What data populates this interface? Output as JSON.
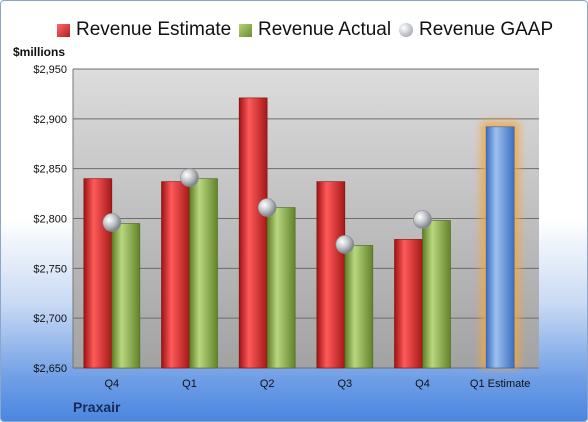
{
  "chart_data": {
    "type": "bar",
    "ylabel": "$millions",
    "footer": "Praxair",
    "categories": [
      "Q4",
      "Q1",
      "Q2",
      "Q3",
      "Q4",
      "Q1 Estimate"
    ],
    "ylim": [
      2650,
      2950
    ],
    "yticks": [
      2650,
      2700,
      2750,
      2800,
      2850,
      2900,
      2950
    ],
    "ytick_labels": [
      "$2,650",
      "$2,700",
      "$2,750",
      "$2,800",
      "$2,850",
      "$2,900",
      "$2,950"
    ],
    "legend_position": "top",
    "grid": true,
    "series": [
      {
        "name": "Revenue Estimate",
        "kind": "bar",
        "color": "#d42a2a",
        "values": [
          2840,
          2837,
          2921,
          2837,
          2779,
          null
        ]
      },
      {
        "name": "Revenue Actual",
        "kind": "bar",
        "color": "#8db04a",
        "values": [
          2795,
          2840,
          2811,
          2773,
          2798,
          null
        ]
      },
      {
        "name": "Revenue GAAP",
        "kind": "marker",
        "color": "#b8bcc2",
        "values": [
          2796,
          2841,
          2811,
          2774,
          2799,
          null
        ]
      }
    ],
    "projection": {
      "category": "Q1 Estimate",
      "value": 2892,
      "color": "#5b8fd6",
      "glow": "#f4a640"
    }
  }
}
